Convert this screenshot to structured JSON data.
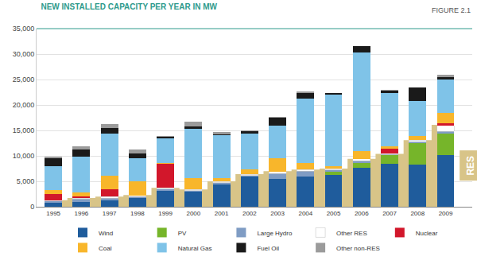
{
  "chart_data": {
    "type": "bar",
    "title": "NEW INSTALLED CAPACITY PER YEAR IN MW",
    "subtitle": "FIGURE 2.1",
    "categories": [
      "1995",
      "1996",
      "1997",
      "1998",
      "1999",
      "2000",
      "2001",
      "2002",
      "2003",
      "2004",
      "2005",
      "2006",
      "2007",
      "2008",
      "2009"
    ],
    "stacked": true,
    "grid": true,
    "legend": "bottom",
    "ylim": [
      0,
      35000
    ],
    "yticks": [
      0,
      {
        "value": 5000,
        "label": "5,000"
      },
      {
        "value": 10000,
        "label": "10,000"
      },
      {
        "value": 15000,
        "label": "15,000"
      },
      {
        "value": 20000,
        "label": "20,000"
      },
      {
        "value": 25000,
        "label": "25,000"
      },
      {
        "value": 30000,
        "label": "30,000"
      },
      {
        "value": 35000,
        "label": "35,000"
      }
    ],
    "series": [
      {
        "name": "RES",
        "type": "area",
        "color": "#d8c488",
        "values": [
          1300,
          1700,
          2000,
          2300,
          3700,
          3400,
          5000,
          6400,
          7000,
          7300,
          7500,
          9400,
          10400,
          13100,
          16100
        ]
      },
      {
        "name": "Wind",
        "color": "#1f5c9c",
        "values": [
          800,
          1000,
          1200,
          1700,
          3200,
          2900,
          4400,
          5900,
          5500,
          6000,
          6200,
          7600,
          8500,
          8300,
          10200
        ]
      },
      {
        "name": "PV",
        "color": "#76b52a",
        "values": [
          0,
          0,
          0,
          0,
          0,
          0,
          0,
          0,
          0,
          0,
          700,
          1000,
          1600,
          4200,
          4200
        ]
      },
      {
        "name": "Large Hydro",
        "color": "#7f9cc4",
        "values": [
          300,
          500,
          500,
          300,
          300,
          300,
          300,
          200,
          1000,
          1000,
          300,
          400,
          200,
          300,
          400
        ]
      },
      {
        "name": "Other RES",
        "color": "#ffffff",
        "values": [
          200,
          200,
          300,
          200,
          200,
          200,
          300,
          300,
          400,
          300,
          300,
          400,
          100,
          300,
          1200
        ]
      },
      {
        "name": "Nuclear",
        "color": "#d2172b",
        "values": [
          1200,
          300,
          1500,
          0,
          4700,
          0,
          0,
          0,
          0,
          0,
          0,
          0,
          1000,
          100,
          400
        ]
      },
      {
        "name": "Coal",
        "color": "#f8b62b",
        "values": [
          800,
          800,
          2600,
          2800,
          200,
          2300,
          700,
          1000,
          2700,
          1300,
          500,
          1600,
          500,
          700,
          2000
        ]
      },
      {
        "name": "Natural Gas",
        "color": "#7fc3e8",
        "values": [
          4700,
          7000,
          8300,
          4500,
          4800,
          9600,
          8300,
          7000,
          6300,
          12700,
          14000,
          19300,
          10500,
          6900,
          6600
        ]
      },
      {
        "name": "Fuel Oil",
        "color": "#1a1a1a",
        "values": [
          1600,
          1500,
          1000,
          1000,
          300,
          500,
          200,
          400,
          1600,
          1000,
          300,
          1300,
          400,
          2600,
          500
        ]
      },
      {
        "name": "Other non-RES",
        "color": "#9b9b9b",
        "values": [
          200,
          500,
          800,
          700,
          200,
          900,
          500,
          200,
          100,
          300,
          0,
          0,
          200,
          100,
          500
        ]
      }
    ]
  }
}
